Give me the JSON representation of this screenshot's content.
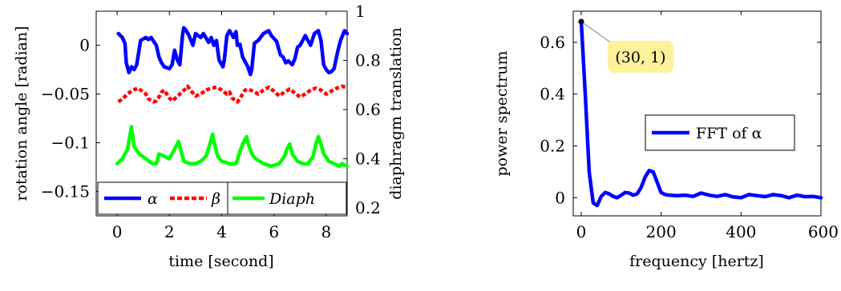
{
  "chart_data": [
    {
      "type": "line",
      "xlabel": "time [second]",
      "ylabel": "rotation angle [radian]",
      "ylabel_right": "diaphragm translation",
      "xlim": [
        -0.8,
        8.8
      ],
      "ylim": [
        -0.175,
        0.035
      ],
      "ylim_right": [
        0.168,
        1.0
      ],
      "x_ticks": [
        0,
        2,
        4,
        6,
        8
      ],
      "x_tick_labels": [
        "0",
        "2",
        "4",
        "6",
        "8"
      ],
      "y_ticks": [
        0,
        -0.05,
        -0.1,
        -0.15
      ],
      "y_tick_labels": [
        "0",
        "−0.05",
        "−0.1",
        "−0.15"
      ],
      "y_right_ticks": [
        1,
        0.8,
        0.6,
        0.4,
        0.2
      ],
      "y_right_tick_labels": [
        "1",
        "0.8",
        "0.6",
        "0.4",
        "0.2"
      ],
      "legend_position": "bottom",
      "series": [
        {
          "name": "α",
          "axis": "left",
          "color": "#0000ff",
          "style": "solid",
          "x": [
            0.05,
            0.2,
            0.3,
            0.35,
            0.45,
            0.55,
            0.65,
            0.75,
            0.9,
            1.1,
            1.2,
            1.3,
            1.4,
            1.5,
            1.6,
            1.7,
            1.8,
            2.0,
            2.1,
            2.2,
            2.3,
            2.4,
            2.5,
            2.55,
            2.65,
            2.75,
            2.9,
            3.0,
            3.2,
            3.3,
            3.5,
            3.6,
            3.7,
            3.8,
            3.9,
            4.0,
            4.05,
            4.1,
            4.2,
            4.3,
            4.45,
            4.55,
            4.6,
            4.7,
            4.8,
            5.0,
            5.1,
            5.15,
            5.25,
            5.4,
            5.6,
            5.8,
            5.9,
            6.1,
            6.25,
            6.35,
            6.45,
            6.55,
            6.7,
            6.8,
            6.9,
            7.0,
            7.2,
            7.4,
            7.55,
            7.7,
            7.8,
            7.9,
            8.0,
            8.1,
            8.2,
            8.3,
            8.45,
            8.55,
            8.7,
            8.8
          ],
          "y": [
            0.012,
            0.008,
            0.002,
            -0.018,
            -0.028,
            -0.022,
            -0.025,
            -0.02,
            0.005,
            0.008,
            0.006,
            0.008,
            0.004,
            0.0,
            -0.012,
            -0.018,
            -0.022,
            -0.024,
            -0.02,
            -0.005,
            -0.015,
            -0.02,
            0.01,
            0.018,
            0.015,
            0.01,
            0.0,
            0.012,
            0.008,
            0.012,
            0.003,
            0.008,
            0.0,
            0.005,
            -0.015,
            -0.02,
            -0.022,
            -0.015,
            0.01,
            0.015,
            0.008,
            0.014,
            0.0,
            0.001,
            -0.012,
            -0.022,
            -0.03,
            -0.025,
            0.002,
            0.005,
            0.012,
            0.015,
            0.01,
            0.004,
            -0.01,
            -0.012,
            -0.018,
            -0.016,
            -0.02,
            -0.014,
            -0.002,
            0.0,
            0.01,
            0.0,
            0.012,
            0.015,
            0.005,
            -0.02,
            -0.025,
            -0.028,
            -0.027,
            -0.024,
            -0.005,
            0.005,
            0.015,
            0.012
          ]
        },
        {
          "name": "β",
          "axis": "left",
          "color": "#ff0000",
          "style": "dashed",
          "x": [
            0.05,
            0.2,
            0.4,
            0.6,
            0.8,
            1.0,
            1.1,
            1.2,
            1.4,
            1.5,
            1.6,
            1.7,
            1.8,
            2.0,
            2.1,
            2.2,
            2.4,
            2.6,
            2.7,
            2.8,
            3.0,
            3.2,
            3.4,
            3.6,
            3.8,
            4.0,
            4.2,
            4.3,
            4.4,
            4.6,
            4.7,
            4.8,
            4.9,
            5.0,
            5.2,
            5.4,
            5.6,
            5.8,
            6.0,
            6.2,
            6.4,
            6.6,
            6.8,
            7.0,
            7.2,
            7.4,
            7.6,
            7.8,
            8.0,
            8.2,
            8.4,
            8.6,
            8.8
          ],
          "y": [
            -0.058,
            -0.055,
            -0.05,
            -0.046,
            -0.044,
            -0.048,
            -0.05,
            -0.055,
            -0.058,
            -0.057,
            -0.053,
            -0.048,
            -0.046,
            -0.054,
            -0.057,
            -0.055,
            -0.05,
            -0.045,
            -0.042,
            -0.046,
            -0.052,
            -0.05,
            -0.046,
            -0.044,
            -0.043,
            -0.046,
            -0.05,
            -0.048,
            -0.054,
            -0.058,
            -0.055,
            -0.05,
            -0.046,
            -0.045,
            -0.047,
            -0.05,
            -0.046,
            -0.043,
            -0.047,
            -0.052,
            -0.048,
            -0.045,
            -0.049,
            -0.053,
            -0.05,
            -0.046,
            -0.044,
            -0.046,
            -0.05,
            -0.047,
            -0.044,
            -0.042,
            -0.043
          ]
        },
        {
          "name": "Diaph",
          "axis": "right",
          "color": "#00ff00",
          "style": "solid",
          "x": [
            0.0,
            0.2,
            0.4,
            0.5,
            0.55,
            0.65,
            0.85,
            1.1,
            1.35,
            1.5,
            1.6,
            1.8,
            2.0,
            2.2,
            2.35,
            2.45,
            2.55,
            2.8,
            3.0,
            3.2,
            3.4,
            3.55,
            3.65,
            3.75,
            3.85,
            4.0,
            4.3,
            4.55,
            4.7,
            4.8,
            4.95,
            5.05,
            5.15,
            5.3,
            5.6,
            5.9,
            6.2,
            6.4,
            6.5,
            6.6,
            6.7,
            6.9,
            7.1,
            7.3,
            7.5,
            7.6,
            7.7,
            7.8,
            7.9,
            8.1,
            8.3,
            8.5,
            8.6,
            8.8
          ],
          "y": [
            0.38,
            0.4,
            0.44,
            0.5,
            0.53,
            0.45,
            0.42,
            0.4,
            0.38,
            0.38,
            0.42,
            0.41,
            0.4,
            0.44,
            0.47,
            0.43,
            0.39,
            0.38,
            0.38,
            0.39,
            0.41,
            0.46,
            0.5,
            0.45,
            0.41,
            0.39,
            0.38,
            0.38,
            0.43,
            0.46,
            0.49,
            0.45,
            0.42,
            0.4,
            0.38,
            0.37,
            0.38,
            0.41,
            0.44,
            0.46,
            0.42,
            0.39,
            0.38,
            0.38,
            0.41,
            0.46,
            0.49,
            0.46,
            0.42,
            0.39,
            0.38,
            0.37,
            0.38,
            0.37
          ]
        }
      ]
    },
    {
      "type": "line",
      "xlabel": "frequency [hertz]",
      "ylabel": "power spectrum",
      "xlim": [
        -20,
        600
      ],
      "ylim": [
        -0.07,
        0.72
      ],
      "x_ticks": [
        0,
        200,
        400,
        600
      ],
      "x_tick_labels": [
        "0",
        "200",
        "400",
        "600"
      ],
      "y_ticks": [
        0,
        0.2,
        0.4,
        0.6
      ],
      "y_tick_labels": [
        "0",
        "0.2",
        "0.4",
        "0.6"
      ],
      "legend_position": "right",
      "annotation": {
        "text": "(30, 1)",
        "x": 0,
        "y": 0.68
      },
      "series": [
        {
          "name": "FFT of α",
          "color": "#0000ff",
          "style": "solid",
          "x": [
            0,
            10,
            20,
            30,
            40,
            50,
            60,
            70,
            80,
            90,
            100,
            110,
            120,
            130,
            140,
            150,
            160,
            170,
            180,
            190,
            200,
            210,
            220,
            240,
            260,
            280,
            300,
            320,
            340,
            360,
            380,
            400,
            420,
            440,
            460,
            480,
            500,
            520,
            540,
            560,
            580,
            600
          ],
          "y": [
            0.68,
            0.4,
            0.1,
            -0.02,
            -0.03,
            0.005,
            0.02,
            0.015,
            0.005,
            0.0,
            0.01,
            0.02,
            0.018,
            0.01,
            0.015,
            0.04,
            0.08,
            0.105,
            0.1,
            0.06,
            0.02,
            0.012,
            0.01,
            0.008,
            0.01,
            0.005,
            0.018,
            0.01,
            0.005,
            0.012,
            0.003,
            0.0,
            0.012,
            0.008,
            0.004,
            0.012,
            0.008,
            0.0,
            0.01,
            0.004,
            0.005,
            0.0
          ]
        }
      ]
    }
  ]
}
